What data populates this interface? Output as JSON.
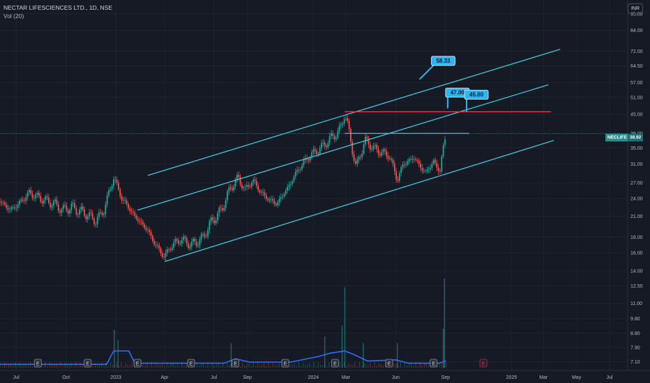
{
  "header": {
    "title": "NECTAR LIFESCIENCES LTD., 1D, NSE",
    "indicator": "Vol (20)",
    "currency": "INR"
  },
  "price_tag": {
    "symbol": "NECLIFE",
    "price": "38.92"
  },
  "colors": {
    "background": "#161a25",
    "up_candle": "#26a69a",
    "down_candle": "#ef5350",
    "channel": "#3fc6dc",
    "resistance": "#e0455a",
    "volume_ma": "#2f6bff",
    "label_bg": "#29b6f6"
  },
  "chart_data": {
    "type": "candlestick",
    "title": "NECTAR LIFESCIENCES LTD., 1D, NSE",
    "y_scale": "log",
    "ylim": [
      6.8,
      99.0
    ],
    "y_ticks": [
      "95.00",
      "84.00",
      "72.00",
      "64.50",
      "57.00",
      "51.00",
      "45.00",
      "39.00",
      "35.00",
      "31.00",
      "27.00",
      "24.00",
      "21.00",
      "18.00",
      "16.00",
      "14.00",
      "12.50",
      "11.00",
      "9.80",
      "8.80",
      "7.90",
      "7.10"
    ],
    "x_ticks": [
      "Jul",
      "Oct",
      "2023",
      "Apr",
      "Jul",
      "Sep",
      "2024",
      "Mar",
      "Jun",
      "Sep",
      "2025",
      "Mar",
      "May",
      "Jul"
    ],
    "x_tick_dates": [
      "2022-07-01",
      "2022-10-01",
      "2023-01-01",
      "2023-04-01",
      "2023-07-01",
      "2023-09-01",
      "2024-01-01",
      "2024-03-01",
      "2024-06-01",
      "2024-09-01",
      "2025-01-01",
      "2025-03-01",
      "2025-05-01",
      "2025-07-01"
    ],
    "x_range": [
      "2022-06-01",
      "2025-08-01"
    ],
    "price_path": [
      [
        "2022-06-01",
        23.5
      ],
      [
        "2022-06-20",
        22.0
      ],
      [
        "2022-07-05",
        23.0
      ],
      [
        "2022-07-25",
        25.0
      ],
      [
        "2022-08-15",
        24.0
      ],
      [
        "2022-09-10",
        23.0
      ],
      [
        "2022-09-25",
        22.0
      ],
      [
        "2022-10-10",
        22.5
      ],
      [
        "2022-11-05",
        21.5
      ],
      [
        "2022-11-25",
        20.3
      ],
      [
        "2022-12-10",
        22.0
      ],
      [
        "2022-12-28",
        28.0
      ],
      [
        "2023-01-12",
        24.0
      ],
      [
        "2023-02-05",
        21.0
      ],
      [
        "2023-02-28",
        19.0
      ],
      [
        "2023-03-15",
        17.0
      ],
      [
        "2023-04-01",
        15.5
      ],
      [
        "2023-04-12",
        16.8
      ],
      [
        "2023-05-01",
        17.7
      ],
      [
        "2023-05-20",
        17.0
      ],
      [
        "2023-06-10",
        17.8
      ],
      [
        "2023-06-25",
        20.0
      ],
      [
        "2023-07-15",
        22.0
      ],
      [
        "2023-08-01",
        26.0
      ],
      [
        "2023-08-15",
        28.0
      ],
      [
        "2023-08-28",
        25.5
      ],
      [
        "2023-09-10",
        27.5
      ],
      [
        "2023-10-01",
        24.5
      ],
      [
        "2023-10-25",
        23.0
      ],
      [
        "2023-11-15",
        26.0
      ],
      [
        "2023-12-05",
        30.0
      ],
      [
        "2023-12-25",
        33.0
      ],
      [
        "2024-01-15",
        35.0
      ],
      [
        "2024-02-05",
        38.0
      ],
      [
        "2024-02-20",
        40.0
      ],
      [
        "2024-02-28",
        45.8
      ],
      [
        "2024-03-08",
        38.0
      ],
      [
        "2024-03-20",
        30.0
      ],
      [
        "2024-04-05",
        37.0
      ],
      [
        "2024-04-25",
        34.5
      ],
      [
        "2024-05-20",
        33.0
      ],
      [
        "2024-06-04",
        27.5
      ],
      [
        "2024-06-15",
        31.0
      ],
      [
        "2024-07-05",
        32.5
      ],
      [
        "2024-07-25",
        29.0
      ],
      [
        "2024-08-10",
        31.5
      ],
      [
        "2024-08-22",
        29.5
      ],
      [
        "2024-08-29",
        36.0
      ],
      [
        "2024-09-02",
        38.92
      ]
    ],
    "volume_spikes": [
      [
        "2022-12-29",
        0.34
      ],
      [
        "2023-01-05",
        0.25
      ],
      [
        "2024-02-28",
        0.72
      ],
      [
        "2024-02-23",
        0.38
      ],
      [
        "2024-01-22",
        0.28
      ],
      [
        "2023-08-02",
        0.22
      ],
      [
        "2024-04-02",
        0.22
      ],
      [
        "2024-06-04",
        0.22
      ],
      [
        "2024-08-30",
        0.8
      ],
      [
        "2024-08-28",
        0.35
      ]
    ],
    "volume_ma": [
      [
        "2022-06-01",
        0.03
      ],
      [
        "2022-12-15",
        0.03
      ],
      [
        "2022-12-28",
        0.15
      ],
      [
        "2023-01-25",
        0.15
      ],
      [
        "2023-02-05",
        0.04
      ],
      [
        "2023-07-20",
        0.04
      ],
      [
        "2023-08-10",
        0.08
      ],
      [
        "2023-09-05",
        0.05
      ],
      [
        "2023-11-20",
        0.05
      ],
      [
        "2024-01-10",
        0.1
      ],
      [
        "2024-02-01",
        0.13
      ],
      [
        "2024-02-28",
        0.15
      ],
      [
        "2024-03-15",
        0.12
      ],
      [
        "2024-04-10",
        0.06
      ],
      [
        "2024-06-01",
        0.07
      ],
      [
        "2024-06-25",
        0.04
      ],
      [
        "2024-08-20",
        0.04
      ],
      [
        "2024-09-02",
        0.06
      ]
    ],
    "channel_lines": [
      [
        [
          "2023-03-01",
          28.5
        ],
        [
          "2025-04-01",
          73.0
        ]
      ],
      [
        [
          "2023-02-10",
          22.0
        ],
        [
          "2025-03-10",
          56.0
        ]
      ],
      [
        [
          "2023-04-01",
          15.0
        ],
        [
          "2025-03-20",
          37.0
        ]
      ]
    ],
    "horizontal_lines": [
      {
        "from": "2024-02-28",
        "to": "2025-03-15",
        "value": 45.8,
        "color": "resistance"
      },
      {
        "from": "2024-02-28",
        "to": "2024-10-15",
        "value": 39.0,
        "color": "channel"
      }
    ],
    "last_price_line": 38.92,
    "annotations": [
      {
        "text": "58.33",
        "anchor": [
          "2024-07-15",
          58.33
        ],
        "box_offset": [
          20,
          -20
        ]
      },
      {
        "text": "47.00",
        "anchor": [
          "2024-09-05",
          47.0
        ],
        "box_offset": [
          0,
          -16
        ]
      },
      {
        "text": "45.80",
        "anchor": [
          "2024-10-10",
          45.8
        ],
        "box_offset": [
          0,
          -18
        ]
      }
    ],
    "earnings_markers": [
      "2022-08-10",
      "2022-11-10",
      "2023-02-10",
      "2023-05-20",
      "2023-08-10",
      "2023-11-10",
      "2024-02-10",
      "2024-05-20",
      "2024-08-10",
      "2024-11-10"
    ]
  }
}
